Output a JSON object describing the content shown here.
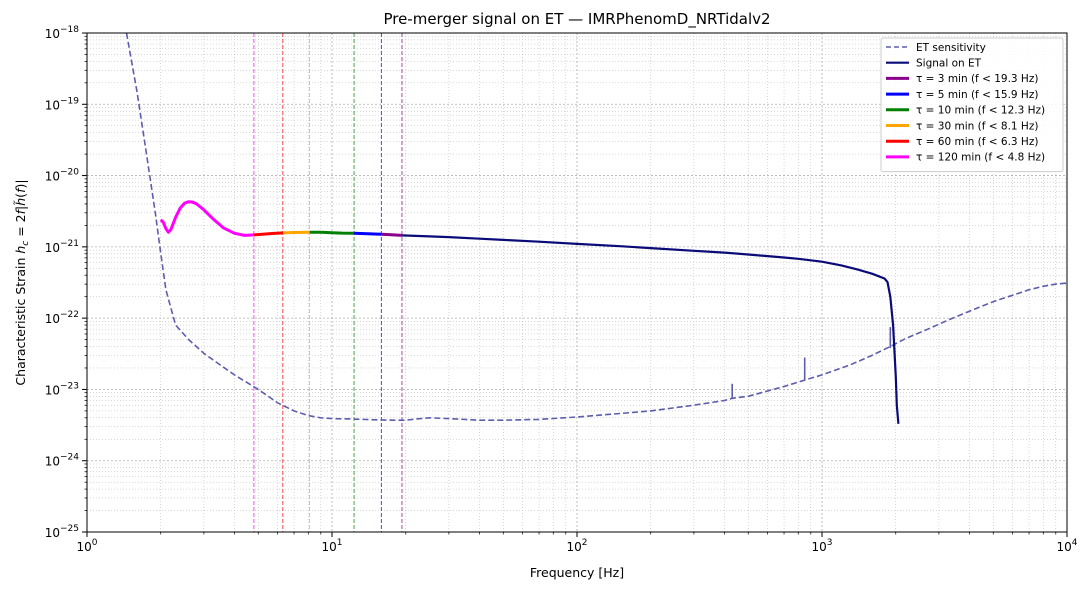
{
  "chart_data": {
    "type": "line",
    "title": "Pre-merger signal on ET — IMRPhenomD_NRTidalv2",
    "xlabel": "Frequency [Hz]",
    "ylabel": "Characteristic Strain",
    "xscale": "log",
    "yscale": "log",
    "xlim": [
      1,
      10000
    ],
    "ylim": [
      1e-25,
      1e-18
    ],
    "grid": true,
    "legend_position": "top-right",
    "x_ticks": [
      1,
      10,
      100,
      1000,
      10000
    ],
    "x_tick_labels": [
      {
        "base": "10",
        "exp": "0"
      },
      {
        "base": "10",
        "exp": "1"
      },
      {
        "base": "10",
        "exp": "2"
      },
      {
        "base": "10",
        "exp": "3"
      },
      {
        "base": "10",
        "exp": "4"
      }
    ],
    "y_ticks": [
      1e-25,
      1e-24,
      1e-23,
      1e-22,
      1e-21,
      1e-20,
      1e-19,
      1e-18
    ],
    "y_tick_labels": [
      {
        "base": "10",
        "exp": "−25"
      },
      {
        "base": "10",
        "exp": "−24"
      },
      {
        "base": "10",
        "exp": "−23"
      },
      {
        "base": "10",
        "exp": "−22"
      },
      {
        "base": "10",
        "exp": "−21"
      },
      {
        "base": "10",
        "exp": "−20"
      },
      {
        "base": "10",
        "exp": "−19"
      },
      {
        "base": "10",
        "exp": "−18"
      }
    ],
    "series": [
      {
        "name": "ET sensitivity",
        "color": "#5d5dae",
        "style": "dashed",
        "x": [
          1.45,
          1.6,
          1.75,
          1.9,
          2.0,
          2.1,
          2.3,
          2.6,
          3.0,
          3.5,
          4.0,
          5.0,
          6.0,
          7.0,
          8.0,
          9.0,
          10,
          12,
          15,
          18,
          20,
          22,
          25,
          30,
          40,
          50,
          70,
          100,
          150,
          200,
          300,
          400,
          430,
          500,
          700,
          850,
          1000,
          1300,
          1600,
          1900,
          2200,
          2700,
          3300,
          4000,
          5000,
          6000,
          7000,
          8000,
          9000,
          10000
        ],
        "y": [
          1e-18,
          1.5e-19,
          2e-20,
          3e-21,
          8e-22,
          2.5e-22,
          8e-23,
          5e-23,
          3.2e-23,
          2.2e-23,
          1.6e-23,
          1e-23,
          6.5e-24,
          5e-24,
          4.3e-24,
          4e-24,
          3.9e-24,
          3.85e-24,
          3.75e-24,
          3.7e-24,
          3.7e-24,
          3.85e-24,
          4e-24,
          3.9e-24,
          3.7e-24,
          3.7e-24,
          3.8e-24,
          4.1e-24,
          4.6e-24,
          5e-24,
          6e-24,
          7e-24,
          7.5e-24,
          8e-24,
          1.1e-23,
          1.35e-23,
          1.6e-23,
          2.2e-23,
          3e-23,
          4e-23,
          5.2e-23,
          7e-23,
          9.5e-23,
          1.25e-22,
          1.7e-22,
          2.1e-22,
          2.5e-22,
          2.8e-22,
          3e-22,
          3.1e-22
        ]
      },
      {
        "name": "Signal on ET",
        "color": "#0a0a78",
        "style": "solid",
        "x": [
          19.3,
          25,
          30,
          40,
          50,
          70,
          100,
          150,
          200,
          300,
          400,
          500,
          700,
          800,
          1000,
          1200,
          1400,
          1600,
          1800,
          1850,
          1900,
          1950,
          2000,
          2020,
          2050
        ],
        "y": [
          1.45e-21,
          1.4e-21,
          1.37e-21,
          1.3e-21,
          1.25e-21,
          1.18e-21,
          1.1e-21,
          1.02e-21,
          9.6e-22,
          8.8e-22,
          8.3e-22,
          7.8e-22,
          7.1e-22,
          6.8e-22,
          6.2e-22,
          5.5e-22,
          4.8e-22,
          4.2e-22,
          3.6e-22,
          3.2e-22,
          2e-22,
          8e-23,
          1.5e-23,
          6e-24,
          3.3e-24
        ]
      },
      {
        "name": "τ = 3 min  (f < 19.3 Hz)",
        "color": "#8b008b",
        "style": "solid",
        "x": [
          15.9,
          17.5,
          19.3
        ],
        "y": [
          1.5e-21,
          1.48e-21,
          1.45e-21
        ]
      },
      {
        "name": "τ = 5 min  (f < 15.9 Hz)",
        "color": "#0000ff",
        "style": "solid",
        "x": [
          12.3,
          14,
          15.9
        ],
        "y": [
          1.55e-21,
          1.53e-21,
          1.5e-21
        ]
      },
      {
        "name": "τ = 10 min  (f < 12.3 Hz)",
        "color": "#008000",
        "style": "solid",
        "x": [
          8.1,
          9,
          10,
          11,
          12.3
        ],
        "y": [
          1.6e-21,
          1.6e-21,
          1.58e-21,
          1.56e-21,
          1.55e-21
        ]
      },
      {
        "name": "τ = 30 min  (f < 8.1 Hz)",
        "color": "#ffa500",
        "style": "solid",
        "x": [
          6.3,
          7,
          8.1
        ],
        "y": [
          1.57e-21,
          1.59e-21,
          1.6e-21
        ]
      },
      {
        "name": "τ = 60 min  (f < 6.3 Hz)",
        "color": "#ff0000",
        "style": "solid",
        "x": [
          4.8,
          5.2,
          5.7,
          6.3
        ],
        "y": [
          1.47e-21,
          1.5e-21,
          1.54e-21,
          1.57e-21
        ]
      },
      {
        "name": "τ = 120 min  (f < 4.8 Hz)",
        "color": "#ff00ff",
        "style": "solid",
        "x": [
          2.0,
          2.05,
          2.1,
          2.15,
          2.2,
          2.3,
          2.4,
          2.5,
          2.6,
          2.7,
          2.8,
          3.0,
          3.3,
          3.6,
          4.0,
          4.4,
          4.8
        ],
        "y": [
          2.4e-21,
          2.2e-21,
          1.8e-21,
          1.6e-21,
          1.75e-21,
          2.6e-21,
          3.5e-21,
          4.1e-21,
          4.3e-21,
          4.25e-21,
          4e-21,
          3.3e-21,
          2.4e-21,
          1.85e-21,
          1.55e-21,
          1.45e-21,
          1.47e-21
        ]
      }
    ],
    "vertical_lines": [
      {
        "x": 4.8,
        "color": "#ff00ff"
      },
      {
        "x": 6.3,
        "color": "#ff0000"
      },
      {
        "x": 8.1,
        "color": "#ffa500"
      },
      {
        "x": 12.3,
        "color": "#008000"
      },
      {
        "x": 15.9,
        "color": "#0000ff"
      },
      {
        "x": 19.3,
        "color": "#8b008b"
      }
    ],
    "sensitivity_spikes": [
      {
        "x": 430,
        "y_low": 7.5e-24,
        "y_high": 1.2e-23
      },
      {
        "x": 850,
        "y_low": 1.35e-23,
        "y_high": 2.8e-23
      },
      {
        "x": 1900,
        "y_low": 3.8e-23,
        "y_high": 7.5e-23
      }
    ]
  }
}
